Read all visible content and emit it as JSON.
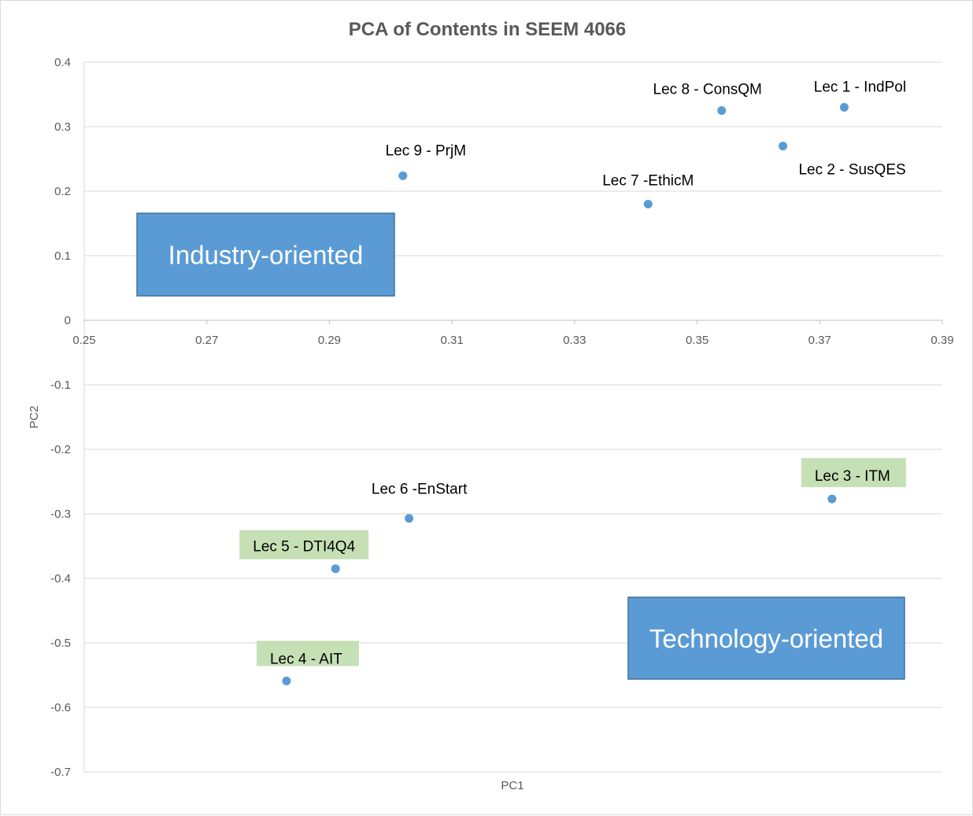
{
  "chart_data": {
    "type": "scatter",
    "title": "PCA of Contents in SEEM 4066",
    "xlabel": "PC1",
    "ylabel": "PC2",
    "xlim": [
      0.25,
      0.39
    ],
    "ylim": [
      -0.7,
      0.4
    ],
    "x_ticks": [
      "0.25",
      "0.27",
      "0.29",
      "0.31",
      "0.33",
      "0.35",
      "0.37",
      "0.39"
    ],
    "y_ticks": [
      "0.4",
      "0.3",
      "0.2",
      "0.1",
      "0",
      "-0.1",
      "-0.2",
      "-0.3",
      "-0.4",
      "-0.5",
      "-0.6",
      "-0.7"
    ],
    "grid": "horizontal",
    "marker_color": "#5b9bd5",
    "points": [
      {
        "label": "Lec 1 - IndPol",
        "x": 0.374,
        "y": 0.33,
        "highlight": false
      },
      {
        "label": "Lec 2 - SusQES",
        "x": 0.364,
        "y": 0.27,
        "highlight": false
      },
      {
        "label": "Lec 3 - ITM",
        "x": 0.372,
        "y": -0.277,
        "highlight": true
      },
      {
        "label": "Lec 4 - AIT",
        "x": 0.283,
        "y": -0.559,
        "highlight": true
      },
      {
        "label": "Lec 5 - DTI4Q4",
        "x": 0.291,
        "y": -0.385,
        "highlight": true
      },
      {
        "label": "Lec 6 -EnStart",
        "x": 0.303,
        "y": -0.307,
        "highlight": false
      },
      {
        "label": "Lec 7 -EthicM",
        "x": 0.342,
        "y": 0.18,
        "highlight": false
      },
      {
        "label": "Lec 8 - ConsQM",
        "x": 0.354,
        "y": 0.325,
        "highlight": false
      },
      {
        "label": "Lec 9 - PrjM",
        "x": 0.302,
        "y": 0.224,
        "highlight": false
      }
    ],
    "highlight_color": "#c5e0b4",
    "annotations": [
      {
        "text": "Industry-oriented",
        "color": "#5b9bd5",
        "border": "#41719c"
      },
      {
        "text": "Technology-oriented",
        "color": "#5b9bd5",
        "border": "#41719c"
      }
    ]
  }
}
